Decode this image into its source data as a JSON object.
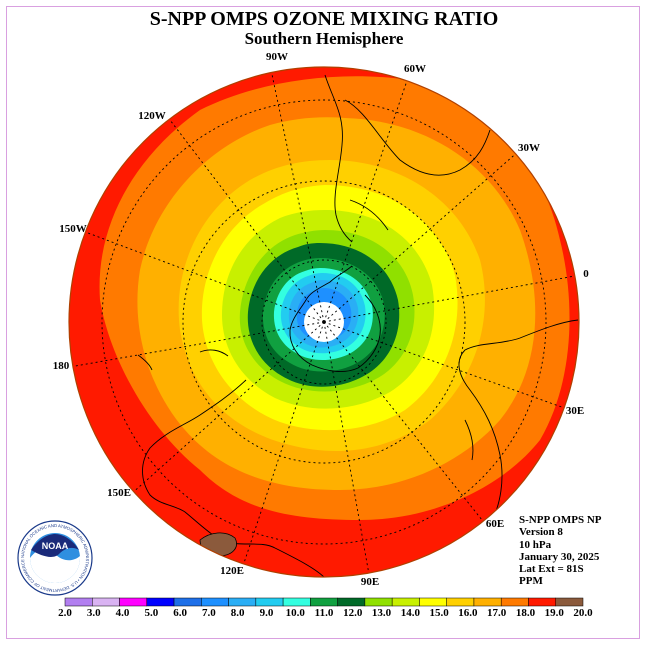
{
  "header": {
    "title": "S-NPP OMPS OZONE MIXING RATIO",
    "subtitle": "Southern Hemisphere"
  },
  "longitude_labels": [
    "90W",
    "60W",
    "120W",
    "30W",
    "150W",
    "0",
    "180",
    "30E",
    "150E",
    "60E",
    "120E",
    "90E"
  ],
  "info": {
    "product": "S-NPP OMPS NP",
    "version": "Version 8",
    "level": "10 hPa",
    "date": "January 30, 2025",
    "lat_ext": "Lat Ext = 81S",
    "units": "PPM"
  },
  "logo": {
    "text": "NOAA",
    "ring_text": "NATIONAL OCEANIC AND ATMOSPHERIC ADMINISTRATION • U.S. DEPARTMENT OF COMMERCE"
  },
  "color_scale": {
    "ticks": [
      "2.0",
      "3.0",
      "4.0",
      "5.0",
      "6.0",
      "7.0",
      "8.0",
      "9.0",
      "10.0",
      "11.0",
      "12.0",
      "13.0",
      "14.0",
      "15.0",
      "16.0",
      "17.0",
      "18.0",
      "19.0",
      "20.0"
    ],
    "colors": [
      "#b27ff0",
      "#d9b3f2",
      "#ff00ff",
      "#0000ff",
      "#1e6fe8",
      "#1e90ff",
      "#2aaef5",
      "#22ccf0",
      "#33ffe0",
      "#10a040",
      "#006a28",
      "#90e000",
      "#c8f000",
      "#ffff00",
      "#ffd000",
      "#ffb000",
      "#ff7a00",
      "#ff1a00",
      "#8b5a3c"
    ]
  }
}
